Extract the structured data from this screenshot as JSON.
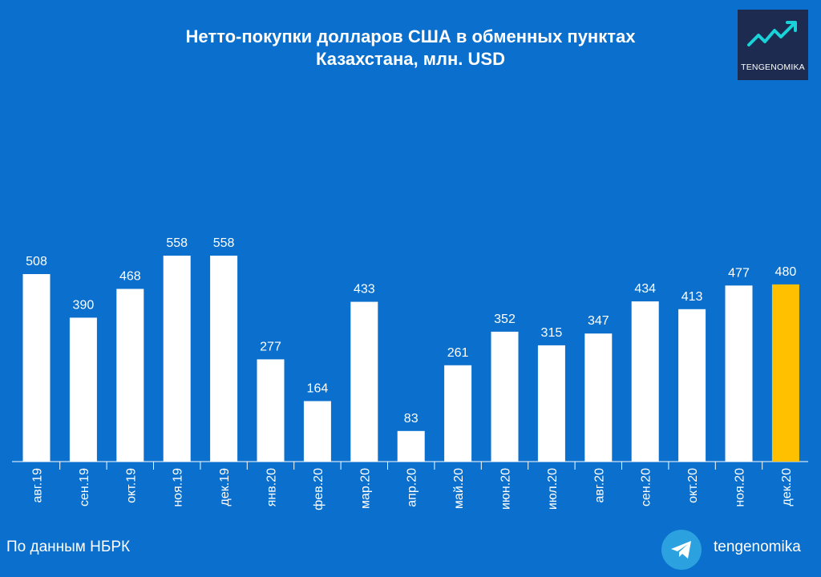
{
  "title": {
    "line1": "Нетто-покупки долларов США в обменных пунктах",
    "line2": "Казахстана, млн. USD"
  },
  "logo": {
    "text": "TENGENOMIKA",
    "icon": "trend-up-icon"
  },
  "footer": {
    "source": "По данным НБРК",
    "telegram_icon": "telegram-icon",
    "handle": "tengenomika"
  },
  "colors": {
    "background": "#0a6fcd",
    "bar": "#ffffff",
    "highlight": "#ffc000",
    "logo_bg": "#1c2b4f",
    "telegram": "#2ba1df"
  },
  "chart_data": {
    "type": "bar",
    "categories": [
      "авг.19",
      "сен.19",
      "окт.19",
      "ноя.19",
      "дек.19",
      "янв.20",
      "фев.20",
      "мар.20",
      "апр.20",
      "май.20",
      "июн.20",
      "июл.20",
      "авг.20",
      "сен.20",
      "окт.20",
      "ноя.20",
      "дек.20"
    ],
    "values": [
      508,
      390,
      468,
      558,
      558,
      277,
      164,
      433,
      83,
      261,
      352,
      315,
      347,
      434,
      413,
      477,
      480
    ],
    "highlight_index": 16,
    "ylim": [
      0,
      600
    ],
    "grid": false,
    "legend": "none"
  }
}
